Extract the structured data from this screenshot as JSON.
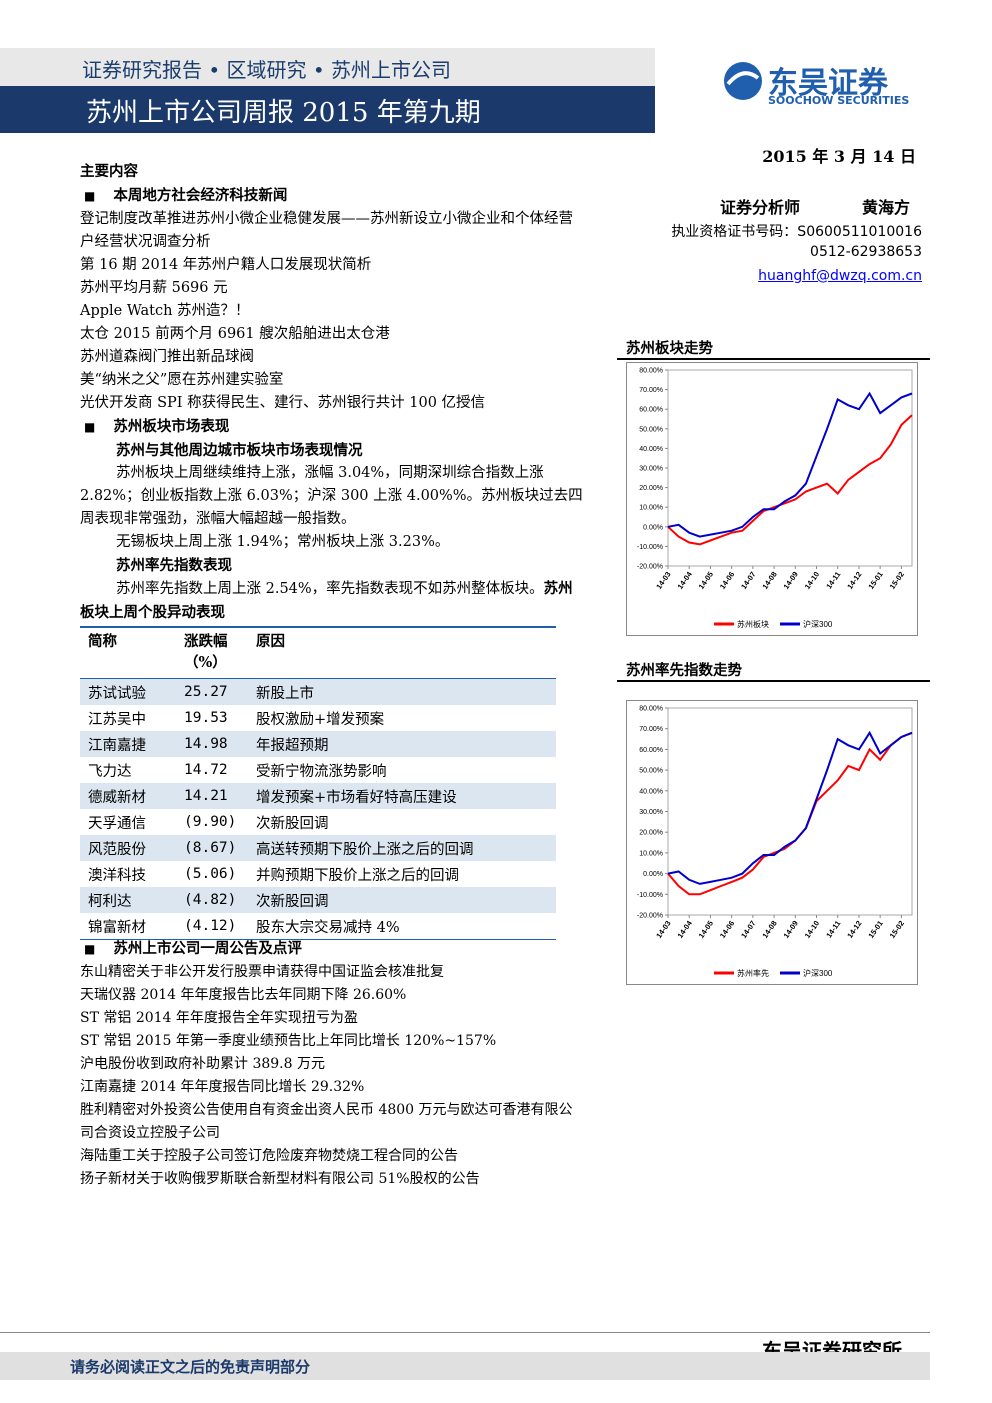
{
  "header": {
    "breadcrumb": "证券研究报告 • 区域研究 • 苏州上市公司",
    "title": "苏州上市公司周报 2015 年第九期",
    "logo_cn": "东吴证券",
    "logo_en": "SOOCHOW SECURITIES",
    "date": "2015 年 3 月 14 日"
  },
  "analyst": {
    "role": "证券分析师",
    "name": "黄海方",
    "cert": "执业资格证书号码：S0600511010016",
    "phone": "0512-62938653",
    "email": "huanghf@dwzq.com.cn"
  },
  "contents": {
    "heading": "主要内容",
    "news": {
      "heading": "本周地方社会经济科技新闻",
      "items": [
        "登记制度改革推进苏州小微企业稳健发展——苏州新设立小微企业和个体经营户经营状况调查分析",
        "第 16 期 2014 年苏州户籍人口发展现状简析",
        "苏州平均月薪 5696 元",
        "Apple Watch 苏州造？！",
        "太仓 2015 前两个月 6961 艘次船舶进出太仓港",
        "苏州道森阀门推出新品球阀",
        "美“纳米之父”愿在苏州建实验室",
        "光伏开发商 SPI 称获得民生、建行、苏州银行共计 100 亿授信"
      ]
    },
    "market": {
      "heading": "苏州板块市场表现",
      "sub1": "苏州与其他周边城市板块市场表现情况",
      "paras1": [
        "苏州板块上周继续维持上涨，涨幅 3.04%，同期深圳综合指数上涨 2.82%；创业板指数上涨 6.03%；沪深 300 上涨 4.00%%。苏州板块过去四周表现非常强劲，涨幅大幅超越一般指数。",
        "无锡板块上周上涨 1.94%；常州板块上涨 3.23%。"
      ],
      "sub2": "苏州率先指数表现",
      "para2": "苏州率先指数上周上涨 2.54%，率先指数表现不如苏州整体板块。",
      "sub3": "苏州板块上周个股异动表现"
    },
    "table": {
      "header": [
        "简称",
        "涨跌幅（%）",
        "原因"
      ],
      "rows": [
        [
          "苏试试验",
          "25.27",
          "新股上市"
        ],
        [
          "江苏吴中",
          "19.53",
          "股权激励+增发预案"
        ],
        [
          "江南嘉捷",
          "14.98",
          "年报超预期"
        ],
        [
          "飞力达",
          "14.72",
          "受新宁物流涨势影响"
        ],
        [
          "德威新材",
          "14.21",
          "增发预案+市场看好特高压建设"
        ],
        [
          "天孚通信",
          "(9.90)",
          "次新股回调"
        ],
        [
          "风范股份",
          "(8.67)",
          "高送转预期下股价上涨之后的回调"
        ],
        [
          "澳洋科技",
          "(5.06)",
          "并购预期下股价上涨之后的回调"
        ],
        [
          "柯利达",
          "(4.82)",
          "次新股回调"
        ],
        [
          "锦富新材",
          "(4.12)",
          "股东大宗交易减持 4%"
        ]
      ]
    },
    "announcements": {
      "heading": "苏州上市公司一周公告及点评",
      "items": [
        "东山精密关于非公开发行股票申请获得中国证监会核准批复",
        "天瑞仪器 2014 年年度报告比去年同期下降 26.60%",
        "ST 常铝 2014 年年度报告全年实现扭亏为盈",
        "ST 常铝 2015 年第一季度业绩预告比上年同比增长 120%~157%",
        "沪电股份收到政府补助累计 389.8 万元",
        "江南嘉捷 2014 年年度报告同比增长 29.32%",
        "胜利精密对外投资公告使用自有资金出资人民币 4800 万元与欧达可香港有限公司合资设立控股子公司",
        "海陆重工关于控股子公司签订危险废弃物焚烧工程合同的公告",
        "扬子新材关于收购俄罗斯联合新型材料有限公司 51%股权的公告"
      ]
    }
  },
  "charts": [
    {
      "type": "line",
      "title": "苏州板块走势",
      "categories": [
        "14-03",
        null,
        "14-04",
        null,
        "14-05",
        null,
        "14-06",
        null,
        "14-07",
        null,
        "14-08",
        null,
        "14-09",
        null,
        "14-10",
        null,
        "14-11",
        null,
        "14-12",
        null,
        "15-01",
        null,
        "15-02",
        null
      ],
      "series": [
        {
          "name": "苏州板块",
          "color": "#ff0000",
          "values": [
            0,
            -5,
            -8,
            -9,
            -7,
            -5,
            -3,
            -2,
            3,
            8,
            10,
            12,
            14,
            18,
            20,
            22,
            17,
            24,
            28,
            32,
            35,
            42,
            52,
            57
          ]
        },
        {
          "name": "沪深300",
          "color": "#0000cc",
          "values": [
            0,
            1,
            -3,
            -5,
            -4,
            -3,
            -2,
            0,
            5,
            9,
            9,
            13,
            16,
            22,
            36,
            50,
            65,
            62,
            60,
            68,
            58,
            62,
            66,
            68
          ]
        }
      ],
      "ylim": [
        -20,
        80
      ],
      "yticks": [
        {
          "value": -20,
          "label": "-20.00%"
        },
        {
          "value": -10,
          "label": "-10.00%"
        },
        {
          "value": 0,
          "label": "0.00%"
        },
        {
          "value": 10,
          "label": "10.00%"
        },
        {
          "value": 20,
          "label": "20.00%"
        },
        {
          "value": 30,
          "label": "30.00%"
        },
        {
          "value": 40,
          "label": "40.00%"
        },
        {
          "value": 50,
          "label": "50.00%"
        },
        {
          "value": 60,
          "label": "60.00%"
        },
        {
          "value": 70,
          "label": "70.00%"
        },
        {
          "value": 80,
          "label": "80.00%"
        }
      ]
    },
    {
      "type": "line",
      "title": "苏州率先指数走势",
      "categories": [
        "14-03",
        null,
        "14-04",
        null,
        "14-05",
        null,
        "14-06",
        null,
        "14-07",
        null,
        "14-08",
        null,
        "14-09",
        null,
        "14-10",
        null,
        "14-11",
        null,
        "14-12",
        null,
        "15-01",
        null,
        "15-02",
        null
      ],
      "series": [
        {
          "name": "苏州率先",
          "color": "#ff0000",
          "values": [
            0,
            -6,
            -10,
            -10,
            -8,
            -6,
            -4,
            -2,
            2,
            8,
            10,
            12,
            16,
            22,
            35,
            40,
            45,
            52,
            50,
            60,
            55,
            62,
            66,
            68
          ]
        },
        {
          "name": "沪深300",
          "color": "#0000cc",
          "values": [
            0,
            1,
            -3,
            -5,
            -4,
            -3,
            -2,
            0,
            5,
            9,
            9,
            13,
            16,
            22,
            36,
            50,
            65,
            62,
            60,
            68,
            58,
            62,
            66,
            68
          ]
        }
      ],
      "ylim": [
        -20,
        80
      ],
      "yticks": [
        {
          "value": -20,
          "label": "-20.00%"
        },
        {
          "value": -10,
          "label": "-10.00%"
        },
        {
          "value": 0,
          "label": "0.00%"
        },
        {
          "value": 10,
          "label": "10.00%"
        },
        {
          "value": 20,
          "label": "20.00%"
        },
        {
          "value": 30,
          "label": "30.00%"
        },
        {
          "value": 40,
          "label": "40.00%"
        },
        {
          "value": 50,
          "label": "50.00%"
        },
        {
          "value": 60,
          "label": "60.00%"
        },
        {
          "value": 70,
          "label": "70.00%"
        },
        {
          "value": 80,
          "label": "80.00%"
        }
      ]
    }
  ],
  "footer": {
    "institute": "东吴证券研究所",
    "disclaimer": "请务必阅读正文之后的免责声明部分"
  }
}
